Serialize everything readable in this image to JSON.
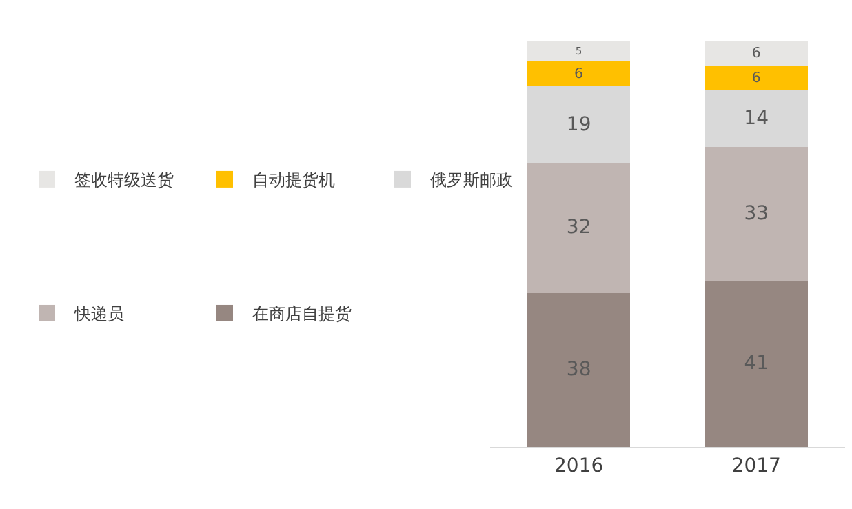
{
  "chart_data": {
    "type": "bar",
    "stacked": true,
    "data_labels": true,
    "legend": "left",
    "categories": [
      "2016",
      "2017"
    ],
    "series": [
      {
        "name": "在商店自提货",
        "color": "#968781",
        "values": [
          38,
          41
        ]
      },
      {
        "name": "快递员",
        "color": "#c0b5b2",
        "values": [
          32,
          33
        ]
      },
      {
        "name": "俄罗斯邮政",
        "color": "#d9d9d9",
        "values": [
          19,
          14
        ]
      },
      {
        "name": "自动提货机",
        "color": "#ffc000",
        "values": [
          6,
          6
        ]
      },
      {
        "name": "签收特级送货",
        "color": "#e7e6e4",
        "values": [
          5,
          6
        ]
      }
    ]
  }
}
